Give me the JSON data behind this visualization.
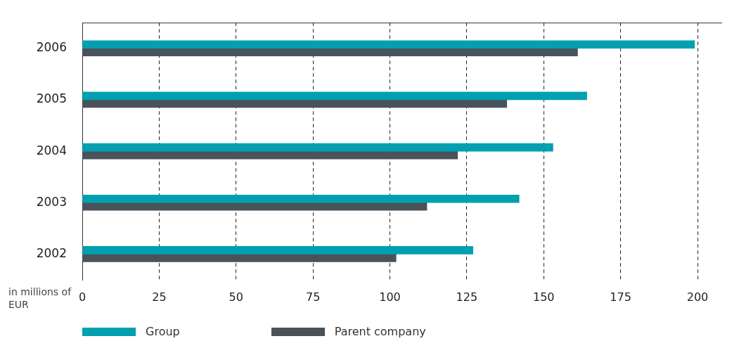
{
  "chart_data": {
    "type": "bar",
    "orientation": "horizontal",
    "xlabel": "in millions of EUR",
    "categories": [
      "2006",
      "2005",
      "2004",
      "2003",
      "2002"
    ],
    "series": [
      {
        "name": "Group",
        "color": "#00a0b0",
        "values": [
          199,
          164,
          153,
          142,
          127
        ]
      },
      {
        "name": "Parent company",
        "color": "#4a525a",
        "values": [
          161,
          138,
          122,
          112,
          102
        ]
      }
    ],
    "xlim": [
      0,
      208
    ],
    "xticks": [
      0,
      25,
      50,
      75,
      100,
      125,
      150,
      175,
      200
    ],
    "grid": "x",
    "legend": "bottom"
  }
}
